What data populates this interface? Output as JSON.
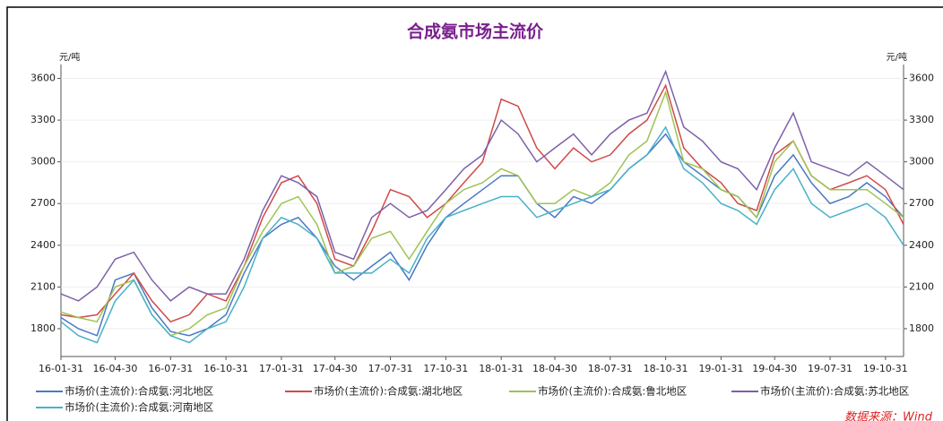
{
  "chart_data": {
    "type": "line",
    "title": "合成氨市场主流价",
    "y_unit": "元/吨",
    "y2_unit": "元/吨",
    "source": "数据来源：Wind",
    "x": [
      "16-01-31",
      "16-02-29",
      "16-03-31",
      "16-04-30",
      "16-05-31",
      "16-06-30",
      "16-07-31",
      "16-08-31",
      "16-09-30",
      "16-10-31",
      "16-11-30",
      "16-12-31",
      "17-01-31",
      "17-02-28",
      "17-03-31",
      "17-04-30",
      "17-05-31",
      "17-06-30",
      "17-07-31",
      "17-08-31",
      "17-09-30",
      "17-10-31",
      "17-11-30",
      "17-12-31",
      "18-01-31",
      "18-02-28",
      "18-03-31",
      "18-04-30",
      "18-05-31",
      "18-06-30",
      "18-07-31",
      "18-08-31",
      "18-09-30",
      "18-10-31",
      "18-11-30",
      "18-12-31",
      "19-01-31",
      "19-02-28",
      "19-03-31",
      "19-04-30",
      "19-05-31",
      "19-06-30",
      "19-07-31",
      "19-08-31",
      "19-09-30",
      "19-10-31",
      "19-11-30"
    ],
    "xlim": [
      "16-01-31",
      "19-11-30"
    ],
    "xticks": [
      "16-01-31",
      "16-04-30",
      "16-07-31",
      "16-10-31",
      "17-01-31",
      "17-04-30",
      "17-07-31",
      "17-10-31",
      "18-01-31",
      "18-04-30",
      "18-07-31",
      "18-10-31",
      "19-01-31",
      "19-04-30",
      "19-07-31",
      "19-10-31"
    ],
    "ylim": [
      1600,
      3700
    ],
    "yticks": [
      1800,
      2100,
      2400,
      2700,
      3000,
      3300,
      3600
    ],
    "y2lim": [
      1600,
      3700
    ],
    "y2ticks": [
      1800,
      2100,
      2400,
      2700,
      3000,
      3300,
      3600
    ],
    "grid": true,
    "legend": "bottom",
    "series": [
      {
        "name": "市场价(主流价):合成氨:河北地区",
        "color": "#4a78c4",
        "values": [
          1880,
          1800,
          1750,
          2150,
          2200,
          1950,
          1780,
          1750,
          1800,
          1900,
          2200,
          2450,
          2550,
          2600,
          2450,
          2250,
          2150,
          2250,
          2350,
          2150,
          2400,
          2600,
          2700,
          2800,
          2900,
          2900,
          2700,
          2600,
          2750,
          2700,
          2800,
          2950,
          3050,
          3200,
          3000,
          2900,
          2800,
          2750,
          2600,
          2900,
          3050,
          2850,
          2700,
          2750,
          2850,
          2750,
          2600
        ]
      },
      {
        "name": "市场价(主流价):合成氨:湖北地区",
        "color": "#cf4a48",
        "values": [
          1900,
          1880,
          1900,
          2050,
          2200,
          2000,
          1850,
          1900,
          2050,
          2000,
          2250,
          2600,
          2850,
          2900,
          2700,
          2300,
          2250,
          2500,
          2800,
          2750,
          2600,
          2700,
          2850,
          3000,
          3450,
          3400,
          3100,
          2950,
          3100,
          3000,
          3050,
          3200,
          3300,
          3550,
          3100,
          2950,
          2850,
          2700,
          2650,
          3050,
          3150,
          2900,
          2800,
          2850,
          2900,
          2800,
          2550
        ]
      },
      {
        "name": "市场价(主流价):合成氨:鲁北地区",
        "color": "#9dc453",
        "values": [
          1920,
          1880,
          1850,
          2100,
          2150,
          1900,
          1750,
          1800,
          1900,
          1950,
          2250,
          2500,
          2700,
          2750,
          2550,
          2200,
          2250,
          2450,
          2500,
          2300,
          2500,
          2700,
          2800,
          2850,
          2950,
          2900,
          2700,
          2700,
          2800,
          2750,
          2850,
          3050,
          3150,
          3500,
          3000,
          2950,
          2800,
          2750,
          2600,
          3000,
          3150,
          2900,
          2800,
          2800,
          2800,
          2700,
          2600
        ]
      },
      {
        "name": "市场价(主流价):合成氨:苏北地区",
        "color": "#7d60aa",
        "values": [
          2050,
          2000,
          2100,
          2300,
          2350,
          2150,
          2000,
          2100,
          2050,
          2050,
          2300,
          2650,
          2900,
          2850,
          2750,
          2350,
          2300,
          2600,
          2700,
          2600,
          2650,
          2800,
          2950,
          3050,
          3300,
          3200,
          3000,
          3100,
          3200,
          3050,
          3200,
          3300,
          3350,
          3650,
          3250,
          3150,
          3000,
          2950,
          2800,
          3100,
          3350,
          3000,
          2950,
          2900,
          3000,
          2900,
          2800
        ]
      },
      {
        "name": "市场价(主流价):合成氨:河南地区",
        "color": "#47b1c8",
        "values": [
          1850,
          1750,
          1700,
          2000,
          2150,
          1900,
          1750,
          1700,
          1800,
          1850,
          2100,
          2450,
          2600,
          2550,
          2450,
          2200,
          2200,
          2200,
          2300,
          2200,
          2450,
          2600,
          2650,
          2700,
          2750,
          2750,
          2600,
          2650,
          2700,
          2750,
          2800,
          2950,
          3050,
          3250,
          2950,
          2850,
          2700,
          2650,
          2550,
          2800,
          2950,
          2700,
          2600,
          2650,
          2700,
          2600,
          2400
        ]
      }
    ]
  }
}
